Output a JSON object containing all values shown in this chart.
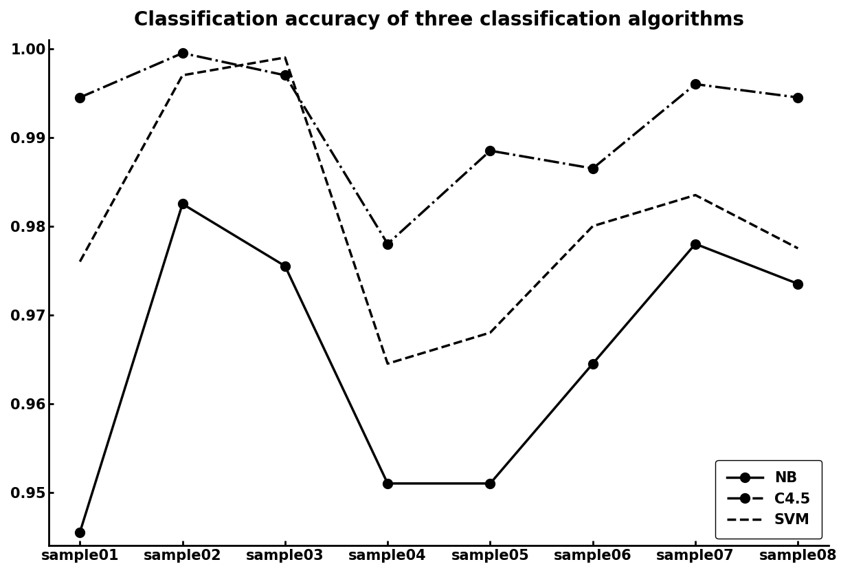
{
  "title": "Classification accuracy of three classification algorithms",
  "categories": [
    "sample01",
    "sample02",
    "sample03",
    "sample04",
    "sample05",
    "sample06",
    "sample07",
    "sample08"
  ],
  "NB": [
    0.9455,
    0.9825,
    0.9755,
    0.951,
    0.951,
    0.9645,
    0.978,
    0.9735
  ],
  "C45": [
    0.9945,
    0.9995,
    0.997,
    0.978,
    0.9885,
    0.9865,
    0.996,
    0.9945
  ],
  "SVM": [
    0.976,
    0.997,
    0.999,
    0.9645,
    0.968,
    0.98,
    0.9835,
    0.9775
  ],
  "ylim_min": 0.944,
  "ylim_max": 1.001,
  "yticks": [
    0.95,
    0.96,
    0.97,
    0.98,
    0.99,
    1.0
  ],
  "figsize": [
    12.4,
    8.33
  ],
  "dpi": 100,
  "title_fontsize": 20,
  "legend_fontsize": 15,
  "tick_fontsize": 15,
  "linewidth": 2.5,
  "markersize": 10,
  "spine_linewidth": 2.0
}
